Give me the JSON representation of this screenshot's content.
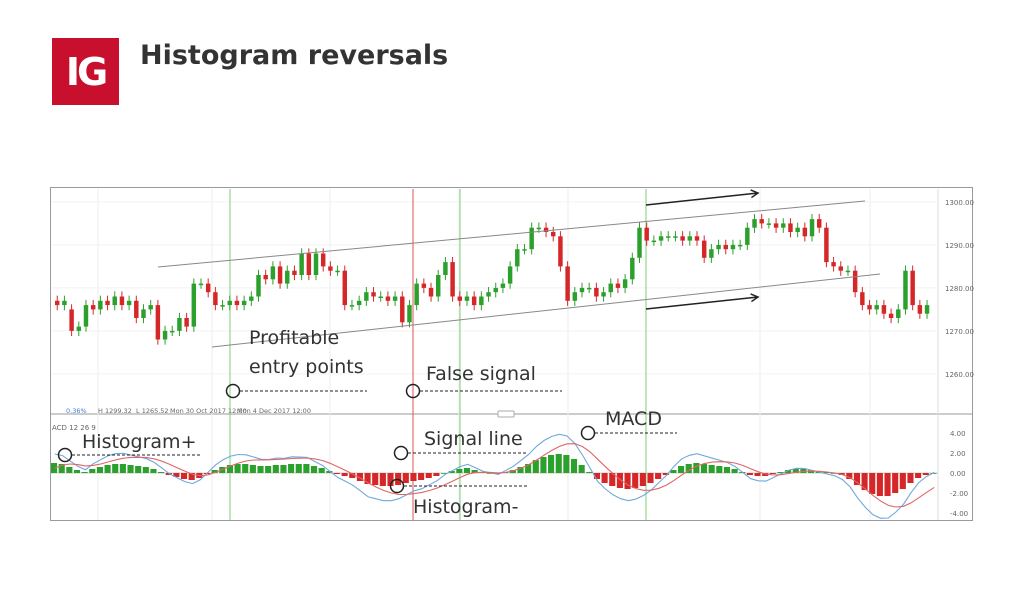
{
  "header": {
    "logo_text": "IG",
    "title": "Histogram reversals",
    "brand_color": "#c8102e"
  },
  "chart_data": {
    "type": "candlestick+macd",
    "price_panel": {
      "y_ticks": [
        "1300.00",
        "1290.00",
        "1280.00",
        "1270.00",
        "1260.00"
      ],
      "ylim": [
        1253,
        1303
      ],
      "info_bar": {
        "change": "0.36%",
        "high": "H 1299.32",
        "low": "L 1265.52",
        "date_left": "Mon 30 Oct 2017 12:00",
        "date_right": "Mon 4 Dec 2017 12:00"
      },
      "candles": [
        [
          1277,
          1276
        ],
        [
          1276,
          1277
        ],
        [
          1275,
          1270
        ],
        [
          1270,
          1271
        ],
        [
          1271,
          1276
        ],
        [
          1276,
          1275
        ],
        [
          1275,
          1277
        ],
        [
          1277,
          1276
        ],
        [
          1276,
          1278
        ],
        [
          1278,
          1276
        ],
        [
          1276,
          1277
        ],
        [
          1277,
          1273
        ],
        [
          1273,
          1275
        ],
        [
          1275,
          1276
        ],
        [
          1276,
          1268
        ],
        [
          1268,
          1270
        ],
        [
          1270,
          1270
        ],
        [
          1270,
          1273
        ],
        [
          1273,
          1271
        ],
        [
          1271,
          1281
        ],
        [
          1281,
          1281
        ],
        [
          1281,
          1279
        ],
        [
          1279,
          1276
        ],
        [
          1276,
          1276
        ],
        [
          1276,
          1277
        ],
        [
          1277,
          1276
        ],
        [
          1276,
          1277
        ],
        [
          1277,
          1278
        ],
        [
          1278,
          1283
        ],
        [
          1283,
          1282
        ],
        [
          1282,
          1285
        ],
        [
          1285,
          1281
        ],
        [
          1281,
          1284
        ],
        [
          1284,
          1283
        ],
        [
          1283,
          1288
        ],
        [
          1288,
          1283
        ],
        [
          1283,
          1288
        ],
        [
          1288,
          1285
        ],
        [
          1285,
          1284
        ],
        [
          1284,
          1284
        ],
        [
          1284,
          1276
        ],
        [
          1276,
          1276
        ],
        [
          1276,
          1277
        ],
        [
          1277,
          1279
        ],
        [
          1279,
          1278
        ],
        [
          1278,
          1278
        ],
        [
          1278,
          1277
        ],
        [
          1277,
          1278
        ],
        [
          1278,
          1272
        ],
        [
          1272,
          1276
        ],
        [
          1276,
          1281
        ],
        [
          1281,
          1280
        ],
        [
          1280,
          1278
        ],
        [
          1278,
          1283
        ],
        [
          1283,
          1286
        ],
        [
          1286,
          1278
        ],
        [
          1278,
          1277
        ],
        [
          1277,
          1278
        ],
        [
          1278,
          1276
        ],
        [
          1276,
          1278
        ],
        [
          1278,
          1279
        ],
        [
          1279,
          1280
        ],
        [
          1280,
          1281
        ],
        [
          1281,
          1285
        ],
        [
          1285,
          1289
        ],
        [
          1289,
          1289
        ],
        [
          1289,
          1294
        ],
        [
          1294,
          1294
        ],
        [
          1294,
          1293
        ],
        [
          1293,
          1292
        ],
        [
          1292,
          1285
        ],
        [
          1285,
          1277
        ],
        [
          1277,
          1279
        ],
        [
          1279,
          1280
        ],
        [
          1280,
          1280
        ],
        [
          1280,
          1278
        ],
        [
          1278,
          1279
        ],
        [
          1279,
          1281
        ],
        [
          1281,
          1280
        ],
        [
          1280,
          1282
        ],
        [
          1282,
          1287
        ],
        [
          1287,
          1294
        ],
        [
          1294,
          1291
        ],
        [
          1291,
          1291
        ],
        [
          1291,
          1292
        ],
        [
          1292,
          1292
        ],
        [
          1292,
          1292
        ],
        [
          1292,
          1291
        ],
        [
          1291,
          1292
        ],
        [
          1292,
          1291
        ],
        [
          1291,
          1287
        ],
        [
          1287,
          1289
        ],
        [
          1289,
          1290
        ],
        [
          1290,
          1289
        ],
        [
          1289,
          1290
        ],
        [
          1290,
          1290
        ],
        [
          1290,
          1294
        ],
        [
          1294,
          1296
        ],
        [
          1296,
          1295
        ],
        [
          1295,
          1295
        ],
        [
          1295,
          1294
        ],
        [
          1294,
          1295
        ],
        [
          1295,
          1293
        ],
        [
          1293,
          1294
        ],
        [
          1294,
          1292
        ],
        [
          1292,
          1296
        ],
        [
          1296,
          1294
        ],
        [
          1294,
          1286
        ],
        [
          1286,
          1285
        ],
        [
          1285,
          1284
        ],
        [
          1284,
          1284
        ],
        [
          1284,
          1279
        ],
        [
          1279,
          1276
        ],
        [
          1276,
          1275
        ],
        [
          1275,
          1276
        ],
        [
          1276,
          1274
        ],
        [
          1274,
          1273
        ],
        [
          1273,
          1275
        ],
        [
          1275,
          1284
        ],
        [
          1284,
          1276
        ],
        [
          1276,
          1274
        ],
        [
          1274,
          1276
        ]
      ],
      "channel_note": "upward channel"
    },
    "macd_panel": {
      "label": "ACD  12  26  9",
      "y_ticks": [
        "4.00",
        "2.00",
        "0.00",
        "-2.00",
        "-4.00"
      ],
      "ylim": [
        -5,
        5
      ],
      "histogram": [
        1.0,
        0.9,
        0.6,
        0.3,
        0.1,
        0.4,
        0.6,
        0.8,
        0.9,
        0.9,
        0.8,
        0.7,
        0.6,
        0.4,
        0.1,
        -0.2,
        -0.4,
        -0.6,
        -0.7,
        -0.5,
        -0.1,
        0.3,
        0.6,
        0.8,
        0.9,
        0.9,
        0.8,
        0.7,
        0.7,
        0.8,
        0.8,
        0.9,
        0.9,
        0.9,
        0.7,
        0.5,
        0.2,
        -0.1,
        -0.3,
        -0.5,
        -0.8,
        -1.1,
        -1.2,
        -1.3,
        -1.3,
        -1.2,
        -1.0,
        -0.8,
        -0.7,
        -0.5,
        -0.3,
        0.0,
        0.2,
        0.4,
        0.5,
        0.3,
        0.1,
        0.0,
        -0.1,
        0.1,
        0.3,
        0.6,
        0.9,
        1.3,
        1.6,
        1.8,
        1.9,
        1.8,
        1.4,
        0.8,
        0.1,
        -0.6,
        -1.0,
        -1.3,
        -1.5,
        -1.6,
        -1.5,
        -1.3,
        -1.0,
        -0.6,
        -0.2,
        0.3,
        0.7,
        0.9,
        1.0,
        0.9,
        0.8,
        0.7,
        0.6,
        0.4,
        0.1,
        -0.2,
        -0.3,
        -0.3,
        -0.1,
        0.1,
        0.3,
        0.4,
        0.4,
        0.3,
        0.2,
        0.1,
        0.0,
        -0.2,
        -0.6,
        -1.2,
        -1.7,
        -2.1,
        -2.3,
        -2.3,
        -2.0,
        -1.6,
        -1.0,
        -0.5,
        -0.2,
        0.0
      ]
    },
    "annotations": [
      {
        "text": "Profitable",
        "name": "ann-profitable-line1"
      },
      {
        "text": "entry points",
        "name": "ann-profitable-line2"
      },
      {
        "text": "False signal",
        "name": "ann-false-signal"
      },
      {
        "text": "MACD",
        "name": "ann-macd"
      },
      {
        "text": "Histogram+",
        "name": "ann-histogram-plus"
      },
      {
        "text": "Signal line",
        "name": "ann-signal-line"
      },
      {
        "text": "Histogram-",
        "name": "ann-histogram-minus"
      }
    ],
    "colors": {
      "up": "#2ca02c",
      "down": "#d62728",
      "macd_line": "#6fa8dc",
      "signal_line": "#e06666",
      "vline_green": "#7ccf7c",
      "vline_red": "#e05050"
    }
  }
}
